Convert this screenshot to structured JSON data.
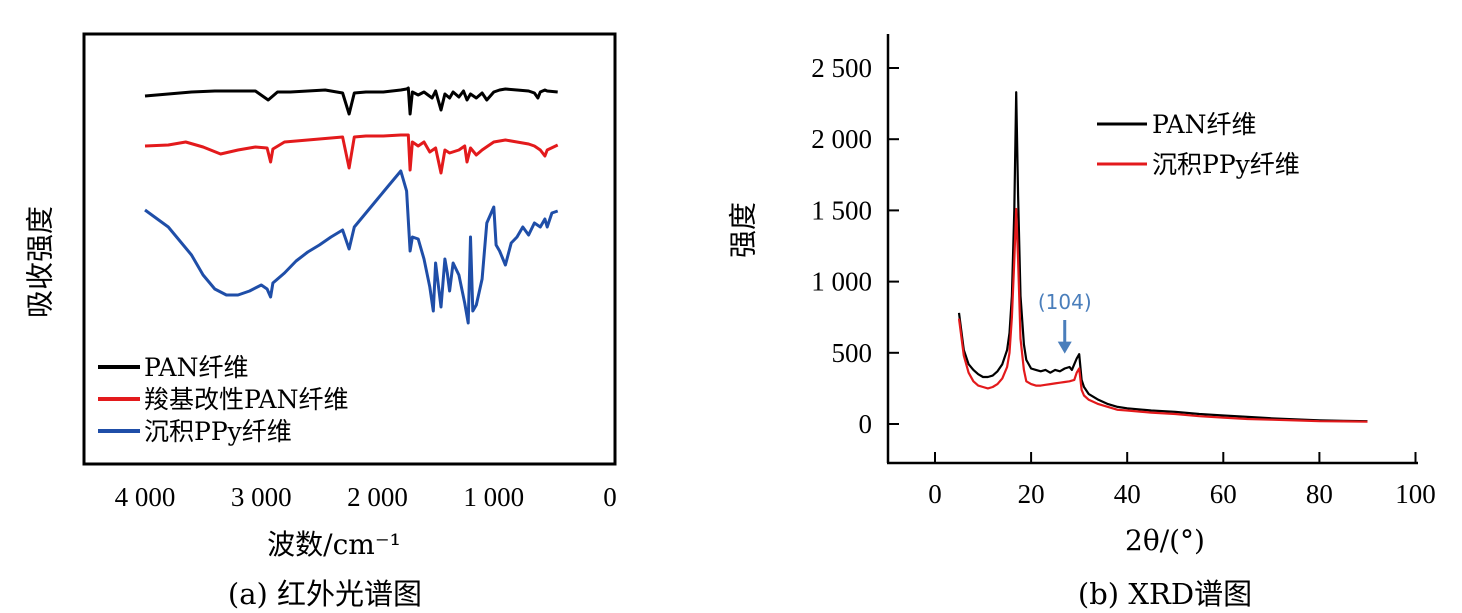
{
  "chart_data": [
    {
      "type": "line",
      "caption": "(a) 红外光谱图",
      "xlabel": "波数/cm⁻¹",
      "ylabel": "吸收强度",
      "xlim": [
        4600,
        0
      ],
      "xticks": [
        4000,
        3000,
        2000,
        1000,
        0
      ],
      "xtick_labels": [
        "4 000",
        "3 000",
        "2 000",
        "1 000",
        "0"
      ],
      "grid": false,
      "legend_position": "bottom-left",
      "series": [
        {
          "name": "PAN纤维",
          "color": "#000000",
          "x": [
            4000,
            3800,
            3600,
            3400,
            3200,
            3050,
            2940,
            2860,
            2750,
            2600,
            2450,
            2300,
            2244,
            2200,
            2100,
            1950,
            1800,
            1750,
            1735,
            1720,
            1700,
            1650,
            1600,
            1530,
            1500,
            1454,
            1420,
            1380,
            1350,
            1300,
            1260,
            1230,
            1200,
            1150,
            1100,
            1060,
            1000,
            950,
            900,
            800,
            700,
            650,
            620,
            600,
            560,
            540,
            450
          ],
          "y": [
            10,
            8,
            6,
            5,
            5,
            5,
            14,
            6,
            6,
            5,
            4,
            7,
            28,
            7,
            6,
            6,
            4,
            3,
            2,
            28,
            6,
            9,
            6,
            12,
            5,
            24,
            8,
            12,
            6,
            11,
            5,
            14,
            8,
            12,
            7,
            14,
            6,
            4,
            3,
            4,
            5,
            7,
            12,
            6,
            4,
            5,
            6
          ]
        },
        {
          "name": "羧基改性PAN纤维",
          "color": "#e31a1c",
          "x": [
            4000,
            3800,
            3650,
            3500,
            3350,
            3200,
            3050,
            2950,
            2920,
            2900,
            2800,
            2600,
            2400,
            2300,
            2244,
            2200,
            2100,
            1950,
            1800,
            1750,
            1735,
            1720,
            1700,
            1650,
            1600,
            1550,
            1500,
            1454,
            1420,
            1380,
            1300,
            1250,
            1230,
            1200,
            1150,
            1100,
            1050,
            1000,
            900,
            800,
            700,
            650,
            600,
            560,
            540,
            450
          ],
          "y": [
            66,
            65,
            62,
            67,
            74,
            70,
            67,
            68,
            82,
            69,
            62,
            60,
            58,
            57,
            88,
            57,
            56,
            56,
            55,
            55,
            55,
            90,
            62,
            66,
            62,
            72,
            68,
            93,
            70,
            73,
            70,
            66,
            82,
            68,
            75,
            70,
            66,
            62,
            60,
            62,
            64,
            66,
            70,
            76,
            70,
            65
          ]
        },
        {
          "name": "沉积PPy纤维",
          "color": "#1f4ea8",
          "x": [
            4000,
            3800,
            3600,
            3500,
            3400,
            3300,
            3200,
            3100,
            3000,
            2950,
            2920,
            2900,
            2800,
            2700,
            2600,
            2500,
            2400,
            2300,
            2244,
            2200,
            2100,
            2000,
            1900,
            1800,
            1750,
            1720,
            1700,
            1650,
            1600,
            1550,
            1520,
            1500,
            1454,
            1420,
            1400,
            1380,
            1350,
            1300,
            1250,
            1220,
            1200,
            1180,
            1150,
            1100,
            1060,
            1000,
            980,
            950,
            900,
            850,
            800,
            750,
            700,
            650,
            600,
            560,
            540,
            500,
            450
          ],
          "y": [
            123,
            140,
            168,
            188,
            202,
            208,
            208,
            204,
            198,
            202,
            210,
            196,
            186,
            174,
            165,
            158,
            150,
            143,
            162,
            140,
            126,
            112,
            98,
            84,
            104,
            164,
            150,
            152,
            172,
            200,
            224,
            176,
            220,
            172,
            186,
            204,
            176,
            188,
            216,
            236,
            150,
            224,
            218,
            192,
            136,
            120,
            158,
            164,
            178,
            156,
            150,
            140,
            148,
            136,
            140,
            132,
            140,
            126,
            124
          ]
        }
      ]
    },
    {
      "type": "line",
      "caption": "(b) XRD谱图",
      "xlabel": "2θ/(°)",
      "ylabel": "强度",
      "xlim": [
        -10,
        100
      ],
      "ylim": [
        -280,
        2750
      ],
      "xticks": [
        0,
        20,
        40,
        60,
        80,
        100
      ],
      "xtick_labels": [
        "0",
        "20",
        "40",
        "60",
        "80",
        "100"
      ],
      "yticks": [
        0,
        500,
        1000,
        1500,
        2000,
        2500
      ],
      "ytick_labels": [
        "0",
        "500",
        "1 000",
        "1 500",
        "2 000",
        "2 500"
      ],
      "grid": false,
      "legend_position": "top-right",
      "annotation": {
        "text": "(104)",
        "x": 27,
        "y": 480,
        "color": "#4a7ebb"
      },
      "series": [
        {
          "name": "PAN纤维",
          "color": "#000000",
          "x": [
            5,
            6,
            7,
            8,
            9,
            10,
            11,
            12,
            13,
            14,
            15,
            15.5,
            16,
            16.5,
            16.9,
            17.3,
            17.8,
            18.5,
            19,
            20,
            21,
            22,
            23,
            24,
            25,
            26,
            27,
            28,
            28.5,
            29,
            29.5,
            30,
            30.5,
            31,
            32,
            34,
            36,
            38,
            40,
            45,
            50,
            55,
            60,
            65,
            70,
            75,
            80,
            85,
            90
          ],
          "y": [
            780,
            520,
            420,
            380,
            350,
            330,
            330,
            340,
            370,
            420,
            520,
            640,
            900,
            1500,
            2330,
            1600,
            900,
            560,
            450,
            390,
            380,
            370,
            380,
            360,
            380,
            370,
            390,
            400,
            380,
            420,
            460,
            490,
            310,
            260,
            210,
            170,
            140,
            120,
            110,
            95,
            85,
            70,
            60,
            50,
            40,
            32,
            25,
            22,
            20
          ]
        },
        {
          "name": "沉积PPy纤维",
          "color": "#e31a1c",
          "x": [
            5,
            6,
            7,
            8,
            9,
            10,
            11,
            12,
            13,
            14,
            15,
            15.5,
            16,
            16.5,
            16.9,
            17.3,
            17.8,
            18.5,
            19,
            20,
            21,
            22,
            23,
            24,
            25,
            26,
            27,
            28,
            29,
            29.5,
            30,
            30.5,
            31,
            32,
            34,
            36,
            38,
            40,
            45,
            50,
            55,
            60,
            65,
            70,
            75,
            80,
            85,
            90
          ],
          "y": [
            740,
            480,
            360,
            300,
            270,
            260,
            250,
            260,
            280,
            320,
            400,
            500,
            750,
            1150,
            1510,
            1150,
            600,
            380,
            300,
            280,
            270,
            270,
            275,
            280,
            285,
            290,
            295,
            300,
            310,
            360,
            390,
            240,
            200,
            170,
            140,
            120,
            100,
            95,
            80,
            70,
            55,
            45,
            35,
            30,
            25,
            20,
            18,
            16
          ]
        }
      ]
    }
  ]
}
